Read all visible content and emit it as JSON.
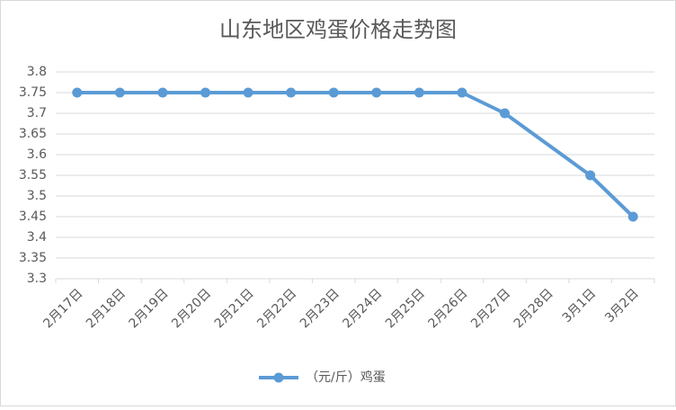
{
  "chart_data": {
    "type": "line",
    "title": "山东地区鸡蛋价格走势图",
    "categories": [
      "2月17日",
      "2月18日",
      "2月19日",
      "2月20日",
      "2月21日",
      "2月22日",
      "2月23日",
      "2月24日",
      "2月25日",
      "2月26日",
      "2月27日",
      "2月28日",
      "3月1日",
      "3月2日"
    ],
    "series": [
      {
        "name": "（元/斤）鸡蛋",
        "color": "#5b9bd5",
        "values": [
          3.75,
          3.75,
          3.75,
          3.75,
          3.75,
          3.75,
          3.75,
          3.75,
          3.75,
          3.75,
          3.7,
          null,
          3.55,
          3.45
        ]
      }
    ],
    "ylim": [
      3.3,
      3.8
    ],
    "yticks": [
      3.3,
      3.35,
      3.4,
      3.45,
      3.5,
      3.55,
      3.6,
      3.65,
      3.7,
      3.75,
      3.8
    ],
    "grid": true,
    "legend": "bottom"
  }
}
